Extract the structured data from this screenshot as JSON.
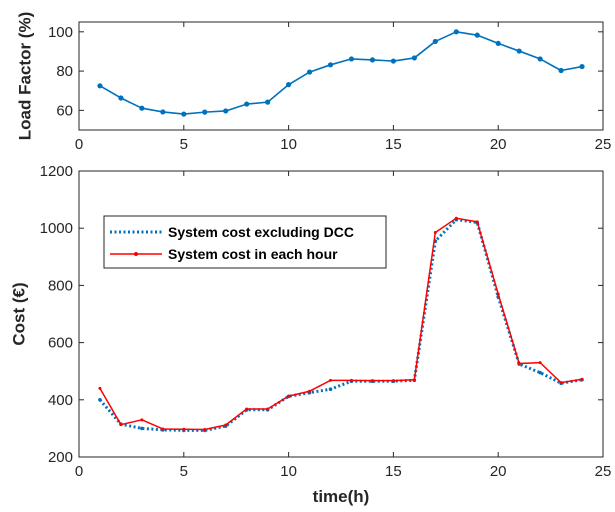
{
  "chart_data": [
    {
      "type": "line",
      "ylabel": "Load Factor (%)",
      "xlabel": "",
      "xlim": [
        0,
        25
      ],
      "ylim": [
        50,
        105
      ],
      "xticks": [
        "0",
        "5",
        "10",
        "15",
        "20",
        "25"
      ],
      "yticks": [
        "60",
        "80",
        "100"
      ],
      "x": [
        1,
        2,
        3,
        4,
        5,
        6,
        7,
        8,
        9,
        10,
        11,
        12,
        13,
        14,
        15,
        16,
        17,
        18,
        19,
        20,
        21,
        22,
        23,
        24
      ],
      "series": [
        {
          "color": "#0072BD",
          "values": [
            72.5,
            66.3,
            61.1,
            59.2,
            58.1,
            59.1,
            59.7,
            63.2,
            64.2,
            73.1,
            79.5,
            83.2,
            86.2,
            85.7,
            85.1,
            86.7,
            95.1,
            100.0,
            98.3,
            94.1,
            90.2,
            86.2,
            80.3,
            82.3
          ]
        }
      ],
      "grid": false
    },
    {
      "type": "line",
      "ylabel": "Cost (€)",
      "xlabel": "time(h)",
      "xlim": [
        0,
        25
      ],
      "ylim": [
        200,
        1200
      ],
      "xticks": [
        "0",
        "5",
        "10",
        "15",
        "20",
        "25"
      ],
      "yticks": [
        "200",
        "400",
        "600",
        "800",
        "1000",
        "1200"
      ],
      "x": [
        1,
        2,
        3,
        4,
        5,
        6,
        7,
        8,
        9,
        10,
        11,
        12,
        13,
        14,
        15,
        16,
        17,
        18,
        19,
        20,
        21,
        22,
        23,
        24
      ],
      "legend_position": "upper-left",
      "series": [
        {
          "name": "System cost excluding DCC",
          "color": "#0072BD",
          "style": "dotted",
          "values": [
            400,
            315,
            300,
            295,
            293,
            293,
            308,
            365,
            365,
            412,
            425,
            437,
            465,
            465,
            465,
            468,
            955,
            1030,
            1020,
            760,
            525,
            495,
            458,
            470
          ]
        },
        {
          "name": "System cost in each hour",
          "color": "#FF0000",
          "style": "solid",
          "values": [
            440,
            313,
            330,
            298,
            297,
            296,
            312,
            368,
            368,
            413,
            430,
            468,
            468,
            467,
            467,
            470,
            985,
            1035,
            1022,
            770,
            527,
            530,
            460,
            472
          ]
        }
      ],
      "grid": false
    }
  ]
}
